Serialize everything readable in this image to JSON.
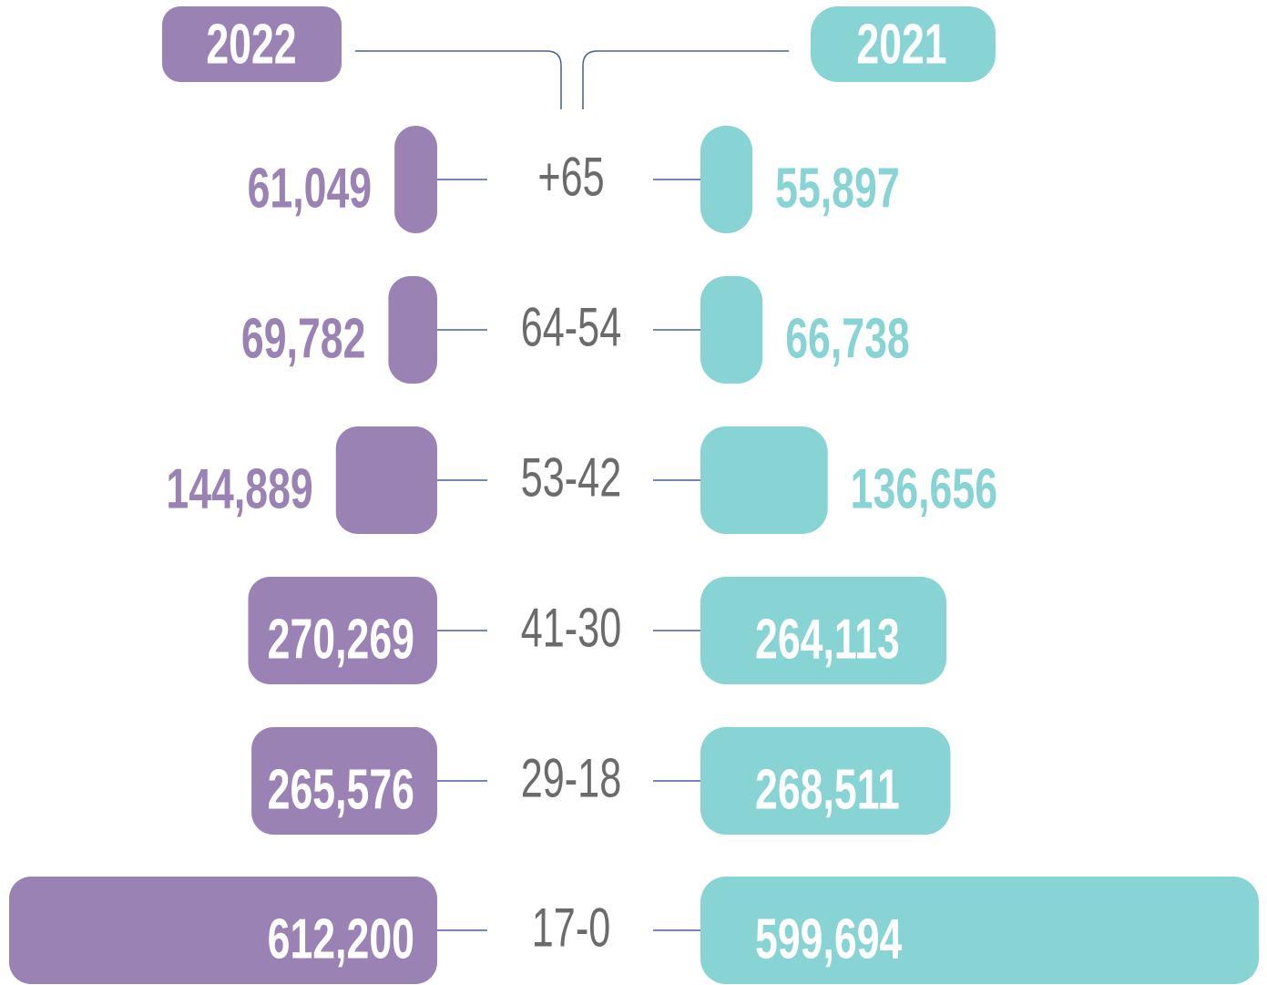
{
  "chart_data": {
    "type": "bar",
    "categories": [
      "+65",
      "64-54",
      "53-42",
      "41-30",
      "29-18",
      "17-0"
    ],
    "series": [
      {
        "name": "2022",
        "color": "#9b82b5",
        "values": [
          61049,
          69782,
          144889,
          270269,
          265576,
          612200
        ],
        "value_labels": [
          "61,049",
          "69,782",
          "144,889",
          "270,269",
          "265,576",
          "612,200"
        ]
      },
      {
        "name": "2021",
        "color": "#88d3d3",
        "values": [
          55897,
          66738,
          136656,
          264113,
          268511,
          599694
        ],
        "value_labels": [
          "55,897",
          "66,738",
          "136,656",
          "264,113",
          "268,511",
          "599,694"
        ]
      }
    ]
  }
}
